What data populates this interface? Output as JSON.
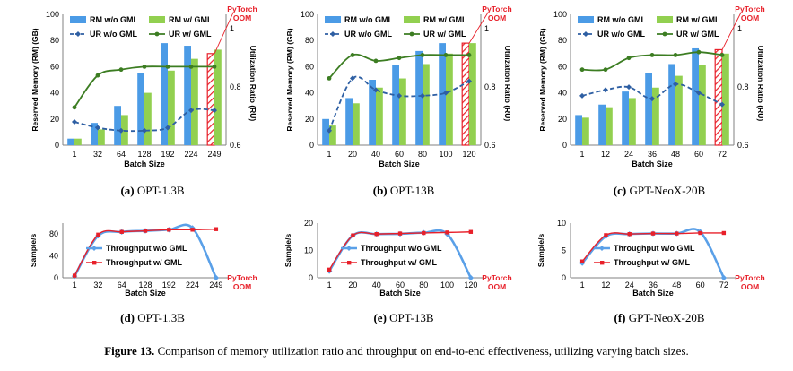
{
  "colors": {
    "rm_wo": "#4b9be6",
    "rm_w": "#92d050",
    "ur_wo": "#2e5fa3",
    "ur_w": "#3c7d22",
    "tp_wo": "#5aa0e8",
    "tp_w": "#e8202a",
    "oom": "#e8202a"
  },
  "figure_caption": {
    "label": "Figure 13.",
    "text": " Comparison of memory utilization ratio and throughput on end-to-end effectiveness, utilizing varying batch sizes."
  },
  "chart_data": [
    {
      "id": "a",
      "type": "bar",
      "caption_label": "(a)",
      "caption_text": " OPT-1.3B",
      "categories": [
        "1",
        "32",
        "64",
        "128",
        "192",
        "224",
        "249"
      ],
      "xlabel": "Batch Size",
      "ylabel": "Reserved Memory (RM) (GB)",
      "y2label": "Utilization Ratio (RU)",
      "ylim": [
        0,
        100
      ],
      "yticks": [
        0,
        20,
        40,
        60,
        80,
        100
      ],
      "y2lim": [
        0.6,
        1.05
      ],
      "y2ticks": [
        "0.6",
        "0.8",
        "1"
      ],
      "legend": [
        "RM w/o GML",
        "RM w/ GML",
        "UR w/o GML",
        "UR w/ GML"
      ],
      "series": [
        {
          "name": "RM w/o GML",
          "kind": "bar",
          "values": [
            5,
            17,
            30,
            55,
            78,
            76,
            70
          ],
          "oom_index": 6
        },
        {
          "name": "RM w/ GML",
          "kind": "bar",
          "values": [
            5,
            12,
            23,
            40,
            57,
            66,
            73
          ]
        },
        {
          "name": "UR w/o GML",
          "kind": "line",
          "values": [
            0.68,
            0.66,
            0.65,
            0.65,
            0.66,
            0.72,
            0.72
          ]
        },
        {
          "name": "UR w/ GML",
          "kind": "line",
          "values": [
            0.73,
            0.84,
            0.86,
            0.87,
            0.87,
            0.87,
            0.87
          ]
        }
      ],
      "annotation": {
        "line1": "PyTorch",
        "line2": "OOM"
      }
    },
    {
      "id": "b",
      "type": "bar",
      "caption_label": "(b)",
      "caption_text": " OPT-13B",
      "categories": [
        "1",
        "20",
        "40",
        "60",
        "80",
        "100",
        "120"
      ],
      "xlabel": "Batch Size",
      "ylabel": "Reserved Memory (RM) (GB)",
      "y2label": "Utilization Ratio (RU)",
      "ylim": [
        0,
        100
      ],
      "yticks": [
        0,
        20,
        40,
        60,
        80,
        100
      ],
      "y2lim": [
        0.6,
        1.05
      ],
      "y2ticks": [
        "0.6",
        "0.8",
        "1"
      ],
      "legend": [
        "RM w/o GML",
        "RM w/ GML",
        "UR w/o GML",
        "UR w/ GML"
      ],
      "series": [
        {
          "name": "RM w/o GML",
          "kind": "bar",
          "values": [
            20,
            36,
            50,
            61,
            72,
            78,
            78
          ],
          "oom_index": 6
        },
        {
          "name": "RM w/ GML",
          "kind": "bar",
          "values": [
            15,
            32,
            44,
            51,
            62,
            70,
            78
          ]
        },
        {
          "name": "UR w/o GML",
          "kind": "line",
          "values": [
            0.65,
            0.83,
            0.79,
            0.77,
            0.77,
            0.78,
            0.82
          ]
        },
        {
          "name": "UR w/ GML",
          "kind": "line",
          "values": [
            0.83,
            0.91,
            0.89,
            0.9,
            0.91,
            0.91,
            0.91
          ]
        }
      ],
      "annotation": {
        "line1": "PyTorch",
        "line2": "OOM"
      }
    },
    {
      "id": "c",
      "type": "bar",
      "caption_label": "(c)",
      "caption_text": " GPT-NeoX-20B",
      "categories": [
        "1",
        "12",
        "24",
        "36",
        "48",
        "60",
        "72"
      ],
      "xlabel": "Batch Size",
      "ylabel": "Reserved Memory (RM) (GB)",
      "y2label": "Utilization Ratio (RU)",
      "ylim": [
        0,
        100
      ],
      "yticks": [
        0,
        20,
        40,
        60,
        80,
        100
      ],
      "y2lim": [
        0.6,
        1.05
      ],
      "y2ticks": [
        "0.6",
        "0.8",
        "1"
      ],
      "legend": [
        "RM w/o GML",
        "RM w/ GML",
        "UR w/o GML",
        "UR w/ GML"
      ],
      "series": [
        {
          "name": "RM w/o GML",
          "kind": "bar",
          "values": [
            23,
            31,
            41,
            55,
            62,
            74,
            73
          ],
          "oom_index": 6
        },
        {
          "name": "RM w/ GML",
          "kind": "bar",
          "values": [
            21,
            29,
            36,
            44,
            53,
            61,
            70
          ]
        },
        {
          "name": "UR w/o GML",
          "kind": "line",
          "values": [
            0.77,
            0.79,
            0.8,
            0.76,
            0.81,
            0.78,
            0.74
          ]
        },
        {
          "name": "UR w/ GML",
          "kind": "line",
          "values": [
            0.86,
            0.86,
            0.9,
            0.91,
            0.91,
            0.92,
            0.91
          ]
        }
      ],
      "annotation": {
        "line1": "PyTorch",
        "line2": "OOM"
      }
    },
    {
      "id": "d",
      "type": "line",
      "caption_label": "(d)",
      "caption_text": " OPT-1.3B",
      "categories": [
        "1",
        "32",
        "64",
        "128",
        "192",
        "224",
        "249"
      ],
      "xlabel": "Batch Size",
      "ylabel": "Sample/s",
      "ylim": [
        0,
        100
      ],
      "yticks": [
        0,
        40,
        80
      ],
      "legend": [
        "Throughput w/o GML",
        "Throughput w/ GML"
      ],
      "series": [
        {
          "name": "Throughput w/o GML",
          "values": [
            3,
            77,
            84,
            86,
            88,
            91,
            0
          ]
        },
        {
          "name": "Throughput w/ GML",
          "values": [
            4,
            79,
            84,
            86,
            88,
            88,
            89
          ]
        }
      ],
      "annotation": {
        "line1": "PyTorch",
        "line2": "OOM"
      }
    },
    {
      "id": "e",
      "type": "line",
      "caption_label": "(e)",
      "caption_text": " OPT-13B",
      "categories": [
        "1",
        "20",
        "40",
        "60",
        "80",
        "100",
        "120"
      ],
      "xlabel": "Batch Size",
      "ylabel": "Sample/s",
      "ylim": [
        0,
        20
      ],
      "yticks": [
        0,
        10,
        20
      ],
      "legend": [
        "Throughput w/o GML",
        "Throughput w/ GML"
      ],
      "series": [
        {
          "name": "Throughput w/o GML",
          "values": [
            2.5,
            15.5,
            16,
            16.1,
            16.5,
            16,
            0
          ]
        },
        {
          "name": "Throughput w/ GML",
          "values": [
            3,
            15.5,
            16,
            16.2,
            16.4,
            16.6,
            16.8
          ]
        }
      ],
      "annotation": {
        "line1": "PyTorch",
        "line2": "OOM"
      }
    },
    {
      "id": "f",
      "type": "line",
      "caption_label": "(f)",
      "caption_text": " GPT-NeoX-20B",
      "categories": [
        "1",
        "12",
        "24",
        "36",
        "48",
        "60",
        "72"
      ],
      "xlabel": "Batch Size",
      "ylabel": "Sample/s",
      "ylim": [
        0,
        10
      ],
      "yticks": [
        0,
        5,
        10
      ],
      "legend": [
        "Throughput w/o GML",
        "Throughput w/ GML"
      ],
      "series": [
        {
          "name": "Throughput w/o GML",
          "values": [
            2.7,
            7.6,
            8,
            8.1,
            8.1,
            8.4,
            0
          ]
        },
        {
          "name": "Throughput w/ GML",
          "values": [
            3,
            7.8,
            8,
            8.1,
            8.1,
            8.2,
            8.2
          ]
        }
      ],
      "annotation": {
        "line1": "PyTorch",
        "line2": "OOM"
      }
    }
  ]
}
